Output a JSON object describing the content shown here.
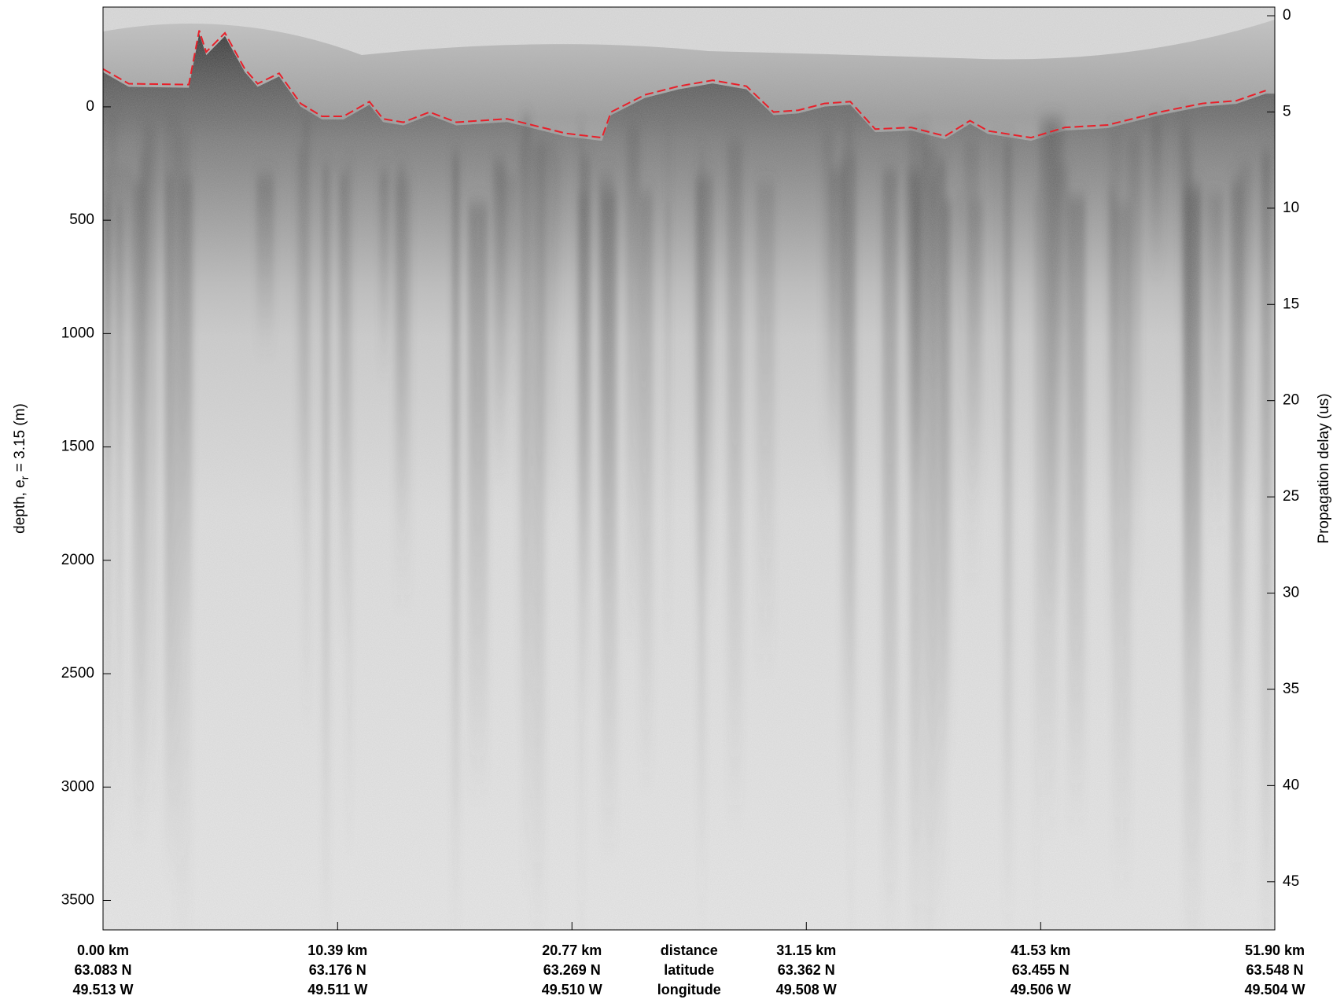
{
  "chart_data": {
    "type": "echogram",
    "ylabel": {
      "text": "depth, e",
      "sub": "r",
      "rest": " = 3.15 (m)"
    },
    "y2label": "Propagation delay (us)",
    "xlim": [
      0,
      51.9
    ],
    "xticks": [
      {
        "value": 0,
        "label": "0.00 km"
      },
      {
        "value": 10.39,
        "label": "10.39 km"
      },
      {
        "value": 20.77,
        "label": "20.77 km"
      },
      {
        "value": 31.15,
        "label": "31.15 km"
      },
      {
        "value": 41.53,
        "label": "41.53 km"
      },
      {
        "value": 51.9,
        "label": "51.90 km"
      }
    ],
    "latitude_labels": [
      "63.083 N",
      "63.176 N",
      "63.269 N",
      "63.362 N",
      "63.455 N",
      "63.548 N"
    ],
    "longitude_labels": [
      "49.513 W",
      "49.511 W",
      "49.510 W",
      "49.508 W",
      "49.506 W",
      "49.504 W"
    ],
    "x_row_labels": [
      "distance",
      "latitude",
      "longitude"
    ],
    "ylim": [
      -440,
      3630
    ],
    "yticks": [
      0,
      500,
      1000,
      1500,
      2000,
      2500,
      3000,
      3500
    ],
    "y2lim": [
      -0.45,
      47.5
    ],
    "y2ticks": [
      0,
      5,
      10,
      15,
      20,
      25,
      30,
      35,
      40,
      45
    ],
    "series": [
      {
        "color": "#e8202a",
        "x": [
          0,
          1.14,
          3.8,
          4.26,
          4.57,
          5.4,
          6.28,
          6.85,
          7.8,
          8.75,
          9.7,
          10.65,
          11.8,
          12.4,
          13.3,
          14.46,
          15.65,
          16.7,
          17.9,
          19.0,
          20.5,
          22.1,
          22.5,
          24.0,
          25.5,
          27.0,
          28.5,
          29.7,
          30.8,
          31.96,
          33.1,
          34.2,
          35.8,
          37.3,
          38.4,
          39.2,
          41.1,
          42.6,
          44.5,
          46.8,
          48.7,
          50.2,
          51.5
        ],
        "values": [
          -167,
          -102,
          -98,
          -337,
          -242,
          -326,
          -167,
          -102,
          -148,
          -15,
          42,
          42,
          -23,
          53,
          68,
          23,
          68,
          61,
          53,
          80,
          117,
          136,
          23,
          -53,
          -91,
          -117,
          -91,
          23,
          15,
          -15,
          -23,
          98,
          91,
          129,
          61,
          106,
          136,
          91,
          80,
          23,
          -15,
          -27,
          -72
        ]
      }
    ]
  }
}
